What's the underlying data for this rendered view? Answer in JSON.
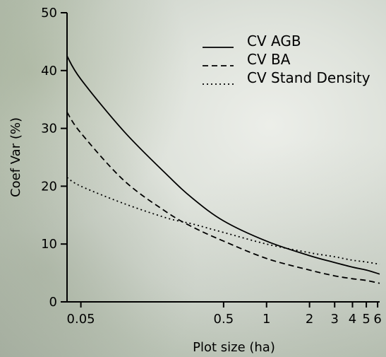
{
  "chart_data": {
    "type": "line",
    "xlabel": "Plot size (ha)",
    "ylabel": "Coef Var (%)",
    "x_scale": "log",
    "xlim": [
      0.04,
      6.2
    ],
    "ylim": [
      0,
      50
    ],
    "x_ticks": [
      0.05,
      0.5,
      1,
      2,
      3,
      4,
      5,
      6
    ],
    "x_tick_labels": [
      "0.05",
      "0.5",
      "1",
      "2",
      "3",
      "4",
      "5",
      "6"
    ],
    "y_ticks": [
      0,
      10,
      20,
      30,
      40,
      50
    ],
    "y_tick_labels": [
      "0",
      "10",
      "20",
      "30",
      "40",
      "50"
    ],
    "grid": false,
    "legend_position": "top-right",
    "x": [
      0.04,
      0.05,
      0.1,
      0.2,
      0.3,
      0.5,
      1,
      2,
      3,
      4,
      5,
      6.2
    ],
    "series": [
      {
        "name": "CV AGB",
        "style": "solid",
        "values": [
          42.5,
          38.5,
          29.5,
          22,
          18,
          14,
          10.5,
          8,
          6.8,
          6,
          5.5,
          4.8
        ]
      },
      {
        "name": "CV BA",
        "style": "dashed",
        "values": [
          32.8,
          29.2,
          21,
          15.5,
          13,
          10.5,
          7.5,
          5.5,
          4.5,
          4,
          3.7,
          3.2
        ]
      },
      {
        "name": "CV Stand Density",
        "style": "dotted",
        "values": [
          21.5,
          20,
          17,
          14.5,
          13.5,
          12,
          10,
          8.5,
          7.8,
          7.2,
          6.9,
          6.5
        ]
      }
    ]
  }
}
